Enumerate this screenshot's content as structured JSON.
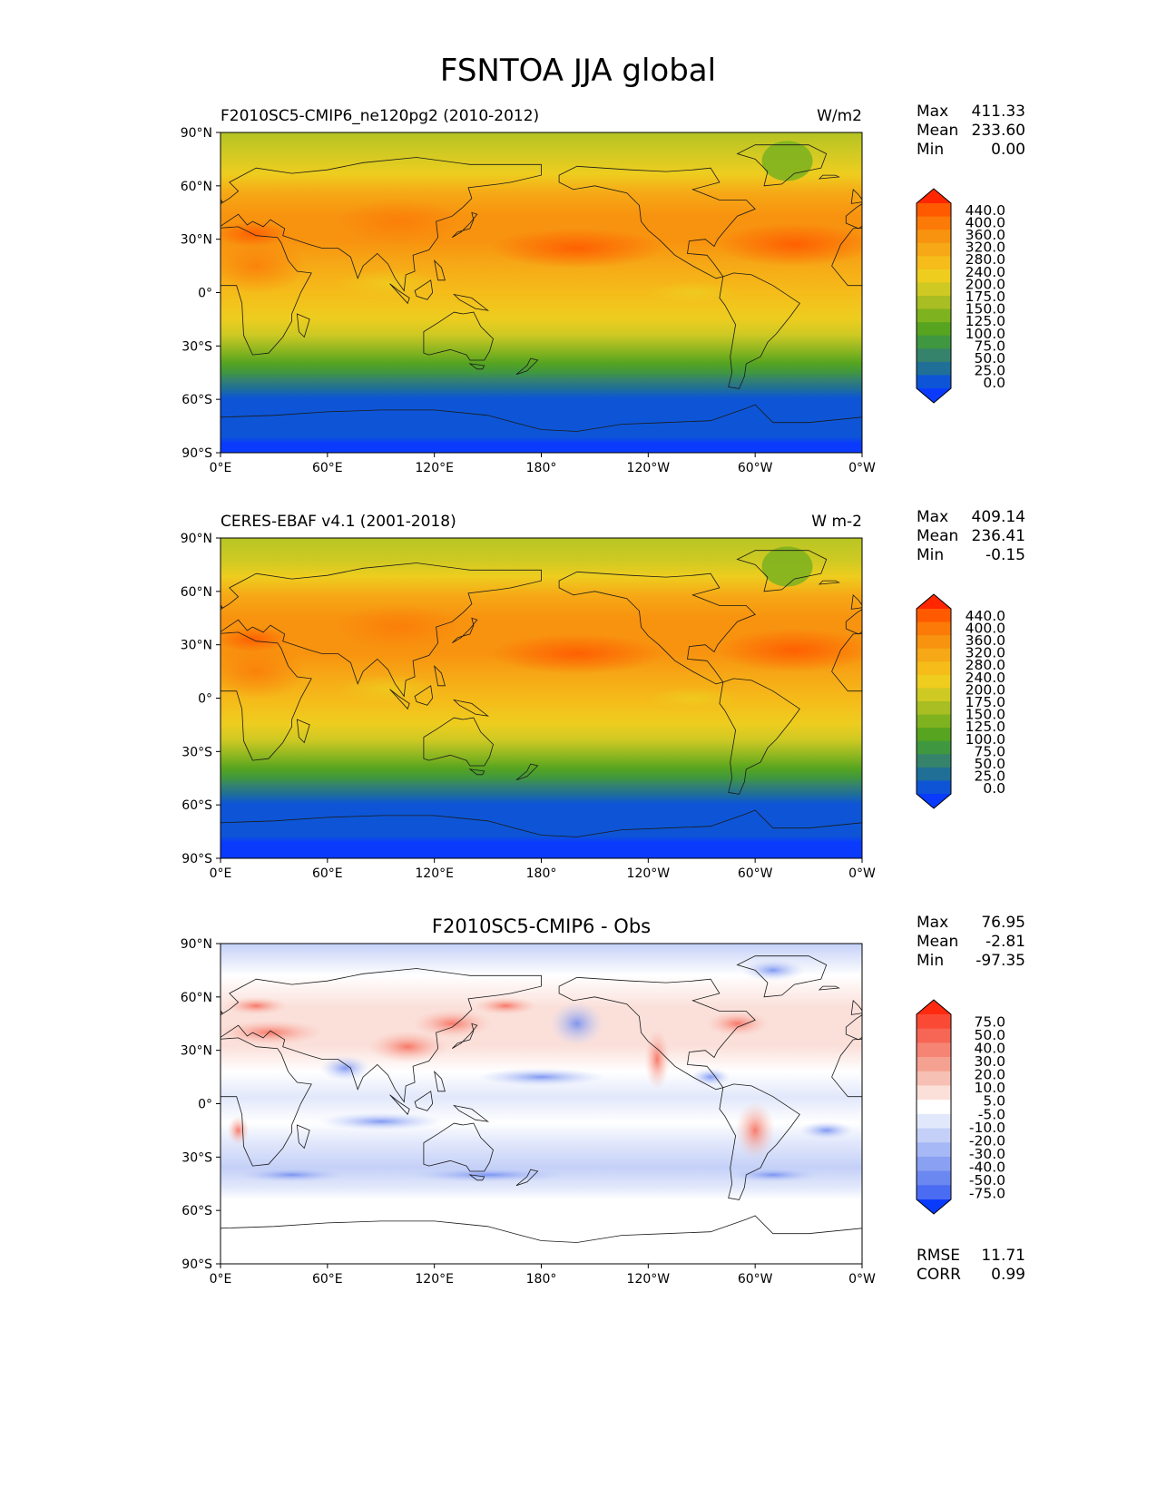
{
  "title": "FSNTOA JJA global",
  "colors": {
    "land_outline": "#1a1a1a",
    "frame": "#000000"
  },
  "axes": {
    "lat_ticks": [
      "90°N",
      "60°N",
      "30°N",
      "0°",
      "30°S",
      "60°S",
      "90°S"
    ],
    "lon_ticks": [
      "0°E",
      "60°E",
      "120°E",
      "180°",
      "120°W",
      "60°W",
      "0°W"
    ]
  },
  "panels": [
    {
      "id": "model",
      "title_left": "F2010SC5-CMIP6_ne120pg2 (2010-2012)",
      "title_center": "",
      "units": "W/m2",
      "stats": [
        {
          "label": "Max",
          "value": "411.33"
        },
        {
          "label": "Mean",
          "value": "233.60"
        },
        {
          "label": "Min",
          "value": "0.00"
        }
      ],
      "colorbar_levels": [
        "440.0",
        "400.0",
        "360.0",
        "320.0",
        "280.0",
        "240.0",
        "200.0",
        "175.0",
        "150.0",
        "125.0",
        "100.0",
        "75.0",
        "50.0",
        "25.0",
        "0.0"
      ],
      "colorbar_colors": [
        "#ff2600",
        "#ff5a00",
        "#fb7a08",
        "#f8930f",
        "#f6a816",
        "#f5bc1a",
        "#eecd1f",
        "#cfc923",
        "#a8be22",
        "#7fb21f",
        "#56a420",
        "#3f9740",
        "#36836c",
        "#1f6f97",
        "#0d55d6",
        "#0a3bfc"
      ],
      "extra_stats": []
    },
    {
      "id": "obs",
      "title_left": "CERES-EBAF v4.1 (2001-2018)",
      "title_center": "",
      "units": "W m-2",
      "stats": [
        {
          "label": "Max",
          "value": "409.14"
        },
        {
          "label": "Mean",
          "value": "236.41"
        },
        {
          "label": "Min",
          "value": "-0.15"
        }
      ],
      "colorbar_levels": [
        "440.0",
        "400.0",
        "360.0",
        "320.0",
        "280.0",
        "240.0",
        "200.0",
        "175.0",
        "150.0",
        "125.0",
        "100.0",
        "75.0",
        "50.0",
        "25.0",
        "0.0"
      ],
      "colorbar_colors": [
        "#ff2600",
        "#ff5a00",
        "#fb7a08",
        "#f8930f",
        "#f6a816",
        "#f5bc1a",
        "#eecd1f",
        "#cfc923",
        "#a8be22",
        "#7fb21f",
        "#56a420",
        "#3f9740",
        "#36836c",
        "#1f6f97",
        "#0d55d6",
        "#0a3bfc"
      ],
      "extra_stats": []
    },
    {
      "id": "diff",
      "title_left": "",
      "title_center": "F2010SC5-CMIP6 - Obs",
      "units": "",
      "stats": [
        {
          "label": "Max",
          "value": "76.95"
        },
        {
          "label": "Mean",
          "value": "-2.81"
        },
        {
          "label": "Min",
          "value": "-97.35"
        }
      ],
      "colorbar_levels": [
        "75.0",
        "50.0",
        "40.0",
        "30.0",
        "20.0",
        "10.0",
        "5.0",
        "-5.0",
        "-10.0",
        "-20.0",
        "-30.0",
        "-40.0",
        "-50.0",
        "-75.0"
      ],
      "colorbar_colors": [
        "#ff2a10",
        "#fa4a36",
        "#f76654",
        "#f68474",
        "#f5a192",
        "#f7c0b4",
        "#fbe0da",
        "#ffffff",
        "#e2e8fb",
        "#c4d0f8",
        "#a6b8f5",
        "#8aa0f2",
        "#6b88f0",
        "#4a6cf2",
        "#0a3bfc"
      ],
      "extra_stats": [
        {
          "label": "RMSE",
          "value": "11.71"
        },
        {
          "label": "CORR",
          "value": "0.99"
        }
      ]
    }
  ]
}
